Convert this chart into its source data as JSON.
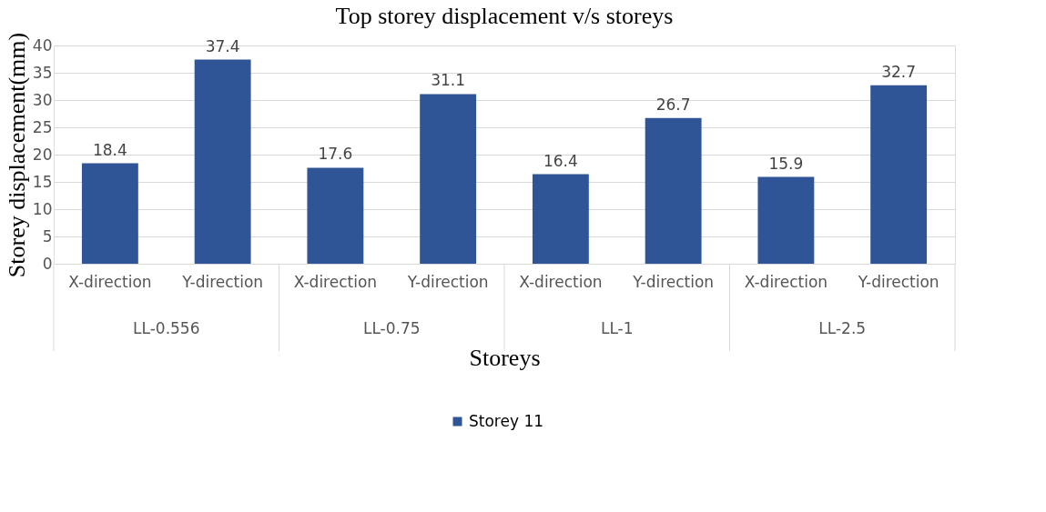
{
  "chart_data": {
    "type": "bar",
    "title": "Top storey displacement v/s storeys",
    "xlabel": "Storeys",
    "ylabel": "Storey displacement(mm)",
    "categories": [
      "X-direction",
      "Y-direction",
      "X-direction",
      "Y-direction",
      "X-direction",
      "Y-direction",
      "X-direction",
      "Y-direction"
    ],
    "series": [
      {
        "name": "Storey 11",
        "color": "#2f5597",
        "values": [
          18.4,
          37.4,
          17.6,
          31.1,
          16.4,
          26.7,
          15.9,
          32.7
        ]
      }
    ],
    "annotations": [
      "LL-0.556",
      "LL-0.75",
      "LL-1",
      "LL-2.5"
    ],
    "ylim": [
      0,
      40
    ],
    "yticks": [
      0,
      5,
      10,
      15,
      20,
      25,
      30,
      35,
      40
    ],
    "grid": "y",
    "legend": "bottom",
    "data_labels": true
  }
}
